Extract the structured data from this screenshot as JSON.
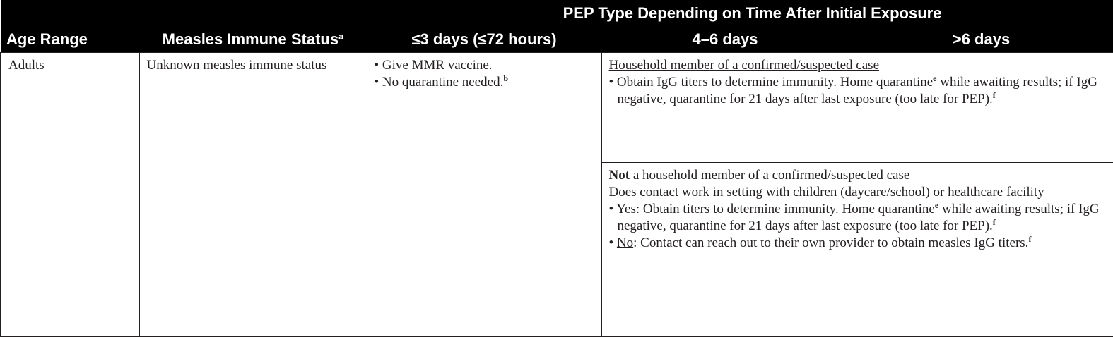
{
  "header": {
    "group_title": "PEP Type Depending on Time After Initial Exposure",
    "col_age": "Age Range",
    "col_status": "Measles Immune Status",
    "col_status_sup": "a",
    "col_3days": "≤3 days (≤72 hours)",
    "col_4_6days": "4–6 days",
    "col_gt6days": ">6 days"
  },
  "row": {
    "age": "Adults",
    "status": "Unknown measles immune status",
    "early": {
      "b1": "• Give MMR vaccine.",
      "b2": "• No quarantine needed.",
      "b2_sup": "b"
    },
    "household": {
      "title": "Household member of a confirmed/suspected case",
      "b1_pre": "• Obtain IgG titers to determine immunity. Home quarantine",
      "b1_sup": "e",
      "b1_post": " while awaiting results; if IgG negative, quarantine for 21 days after last exposure (too late for PEP).",
      "b1_sup2": "f"
    },
    "nonhousehold": {
      "title_bold": "Not",
      "title_rest": " a household member of a confirmed/suspected case",
      "question": "Does contact work in setting with children (daycare/school) or healthcare facility",
      "yes_label": "Yes",
      "yes_pre": ": Obtain titers to determine immunity. Home quarantine",
      "yes_sup": "e",
      "yes_post": " while awaiting results; if IgG negative, quarantine for 21 days after last exposure (too late for PEP).",
      "yes_sup2": "f",
      "no_label": "No",
      "no_text": ": Contact can reach out to their own provider to obtain measles IgG titers.",
      "no_sup": "f"
    }
  }
}
